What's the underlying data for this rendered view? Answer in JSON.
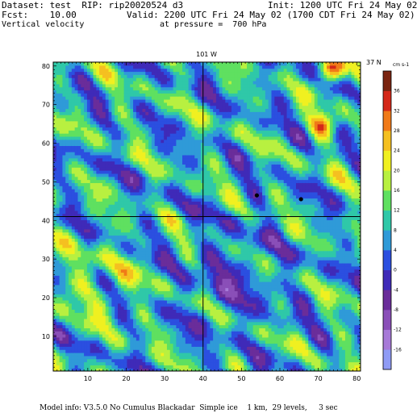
{
  "header": {
    "dataset": "Dataset: test  RIP: rip20020524 d3",
    "init": "Init: 1200 UTC Fri 24 May 02",
    "fcst": "Fcst:    10.00",
    "valid": "Valid: 2200 UTC Fri 24 May 02 (1700 CDT Fri 24 May 02)",
    "field": "Vertical velocity",
    "pressure": "at pressure =  700 hPa"
  },
  "footer": {
    "model_info": "Model info: V3.5.0 No Cumulus Blackadar  Simple ice    1 km,  29 levels,     3 sec"
  },
  "chart_data": {
    "type": "heatmap",
    "title": "Vertical velocity",
    "subtitle": "at pressure =  700 hPa",
    "xlabel": "",
    "ylabel": "",
    "xlim": [
      1,
      81
    ],
    "ylim": [
      1,
      81
    ],
    "x_ticks": [
      10,
      20,
      30,
      40,
      50,
      60,
      70,
      80
    ],
    "y_ticks": [
      10,
      20,
      30,
      40,
      50,
      60,
      70,
      80
    ],
    "grid": false,
    "reference_lines": [
      {
        "orientation": "vertical",
        "x": 40,
        "label": "101 W"
      },
      {
        "orientation": "horizontal",
        "y": 41,
        "label": "37 N"
      }
    ],
    "markers": [
      {
        "x": 54,
        "y": 46.5
      },
      {
        "x": 65.5,
        "y": 45.5
      }
    ],
    "colorbar": {
      "units": "cm s-1",
      "levels": [
        -16,
        -12,
        -8,
        -4,
        0,
        4,
        8,
        12,
        16,
        20,
        24,
        28,
        32,
        36
      ],
      "level_labels": [
        "-16",
        "-12",
        "-8",
        "-4",
        "0",
        "4",
        "8",
        "12",
        "16",
        "20",
        "24",
        "28",
        "32",
        "36"
      ],
      "colors": [
        "#8f9bf5",
        "#a77ad8",
        "#8a4fb8",
        "#6a2d9a",
        "#3f2ab8",
        "#2b4fe0",
        "#2f9ad8",
        "#2fc8a8",
        "#5fe060",
        "#b8f040",
        "#f0f020",
        "#f5c020",
        "#f07a18",
        "#d42818",
        "#7a2410"
      ]
    },
    "field_range": [
      -16,
      36
    ]
  }
}
